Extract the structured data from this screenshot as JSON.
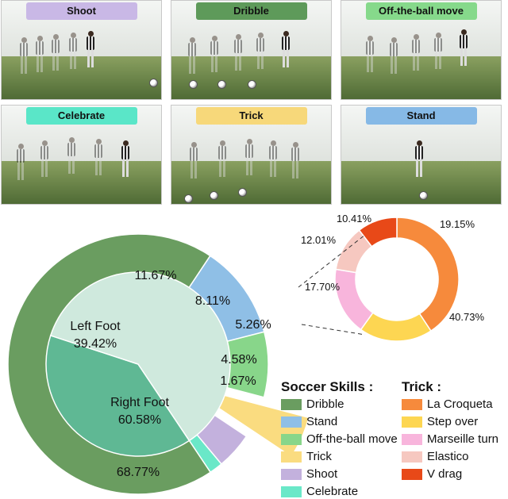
{
  "panels": [
    {
      "label": "Shoot",
      "color": "#c9b8e6"
    },
    {
      "label": "Dribble",
      "color": "#5e9a5a"
    },
    {
      "label": "Off-the-ball move",
      "color": "#86d98b"
    },
    {
      "label": "Celebrate",
      "color": "#5ae6c8"
    },
    {
      "label": "Trick",
      "color": "#f7d87a"
    },
    {
      "label": "Stand",
      "color": "#86b9e6"
    }
  ],
  "chart_data": [
    {
      "type": "pie",
      "series": [
        {
          "name": "Soccer Skills",
          "labels": [
            "Dribble",
            "Stand",
            "Off-the-ball move",
            "Trick",
            "Shoot",
            "Celebrate"
          ],
          "values": [
            68.77,
            11.67,
            8.11,
            5.26,
            4.58,
            1.67
          ],
          "value_labels": [
            "68.77%",
            "11.67%",
            "8.11%",
            "5.26%",
            "4.58%",
            "1.67%"
          ],
          "colors": [
            "#6a9d60",
            "#8fbfe6",
            "#88d68a",
            "#fadc80",
            "#c3b1dd",
            "#6ae8c8"
          ],
          "exploded": [
            "Trick"
          ]
        },
        {
          "name": "Dribble",
          "labels": [
            "Left Foot",
            "Right Foot"
          ],
          "values": [
            39.42,
            60.58
          ],
          "value_labels": [
            "39.42%",
            "60.58%"
          ],
          "colors": [
            "#5fb894",
            "#cfe9dd"
          ]
        }
      ]
    },
    {
      "type": "pie",
      "donut": true,
      "title": "Trick",
      "labels": [
        "La Croqueta",
        "Step over",
        "Marseille turn",
        "Elastico",
        "V drag"
      ],
      "values": [
        40.73,
        19.15,
        17.7,
        12.01,
        10.41
      ],
      "value_labels": [
        "40.73%",
        "19.15%",
        "17.70%",
        "12.01%",
        "10.41%"
      ],
      "colors": [
        "#f68a3c",
        "#fdd652",
        "#f8b5dc",
        "#f6c8c0",
        "#e84918"
      ]
    }
  ],
  "center_labels": {
    "left_name": "Left Foot",
    "left_value": "39.42%",
    "right_name": "Right Foot",
    "right_value": "60.58%"
  },
  "legend_skills": {
    "title": "Soccer Skills :",
    "items": [
      {
        "label": "Dribble",
        "color": "#6a9d60"
      },
      {
        "label": "Stand",
        "color": "#8fbfe6"
      },
      {
        "label": "Off-the-ball move",
        "color": "#88d68a"
      },
      {
        "label": "Trick",
        "color": "#fadc80"
      },
      {
        "label": "Shoot",
        "color": "#c3b1dd"
      },
      {
        "label": "Celebrate",
        "color": "#6ae8c8"
      }
    ]
  },
  "legend_trick": {
    "title": "Trick :",
    "items": [
      {
        "label": "La Croqueta",
        "color": "#f68a3c"
      },
      {
        "label": "Step over",
        "color": "#fdd652"
      },
      {
        "label": "Marseille turn",
        "color": "#f8b5dc"
      },
      {
        "label": "Elastico",
        "color": "#f6c8c0"
      },
      {
        "label": "V drag",
        "color": "#e84918"
      }
    ]
  }
}
